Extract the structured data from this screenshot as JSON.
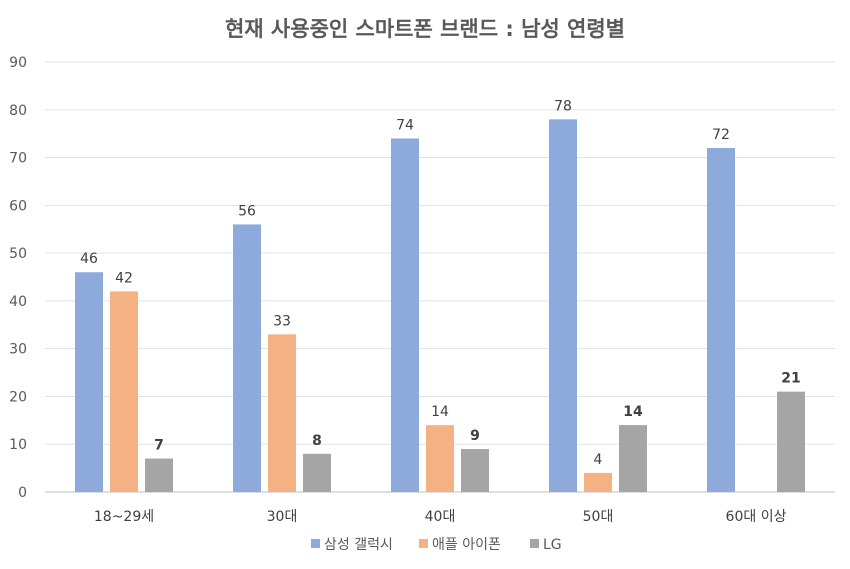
{
  "chart_data": {
    "type": "bar",
    "title": "현재 사용중인 스마트폰 브랜드 : 남성 연령별",
    "xlabel": "",
    "ylabel": "",
    "ylim": [
      0,
      90
    ],
    "yticks": [
      0,
      10,
      20,
      30,
      40,
      50,
      60,
      70,
      80,
      90
    ],
    "grid": true,
    "legend_position": "bottom",
    "categories": [
      "18~29세",
      "30대",
      "40대",
      "50대",
      "60대 이상"
    ],
    "series": [
      {
        "name": "삼성 갤럭시",
        "color": "#8EA9DB",
        "values": [
          46,
          56,
          74,
          78,
          72
        ]
      },
      {
        "name": "애플 아이폰",
        "color": "#F4B183",
        "values": [
          42,
          33,
          14,
          4,
          null
        ]
      },
      {
        "name": "LG",
        "color": "#A5A5A5",
        "values": [
          7,
          8,
          9,
          14,
          21
        ]
      }
    ]
  }
}
